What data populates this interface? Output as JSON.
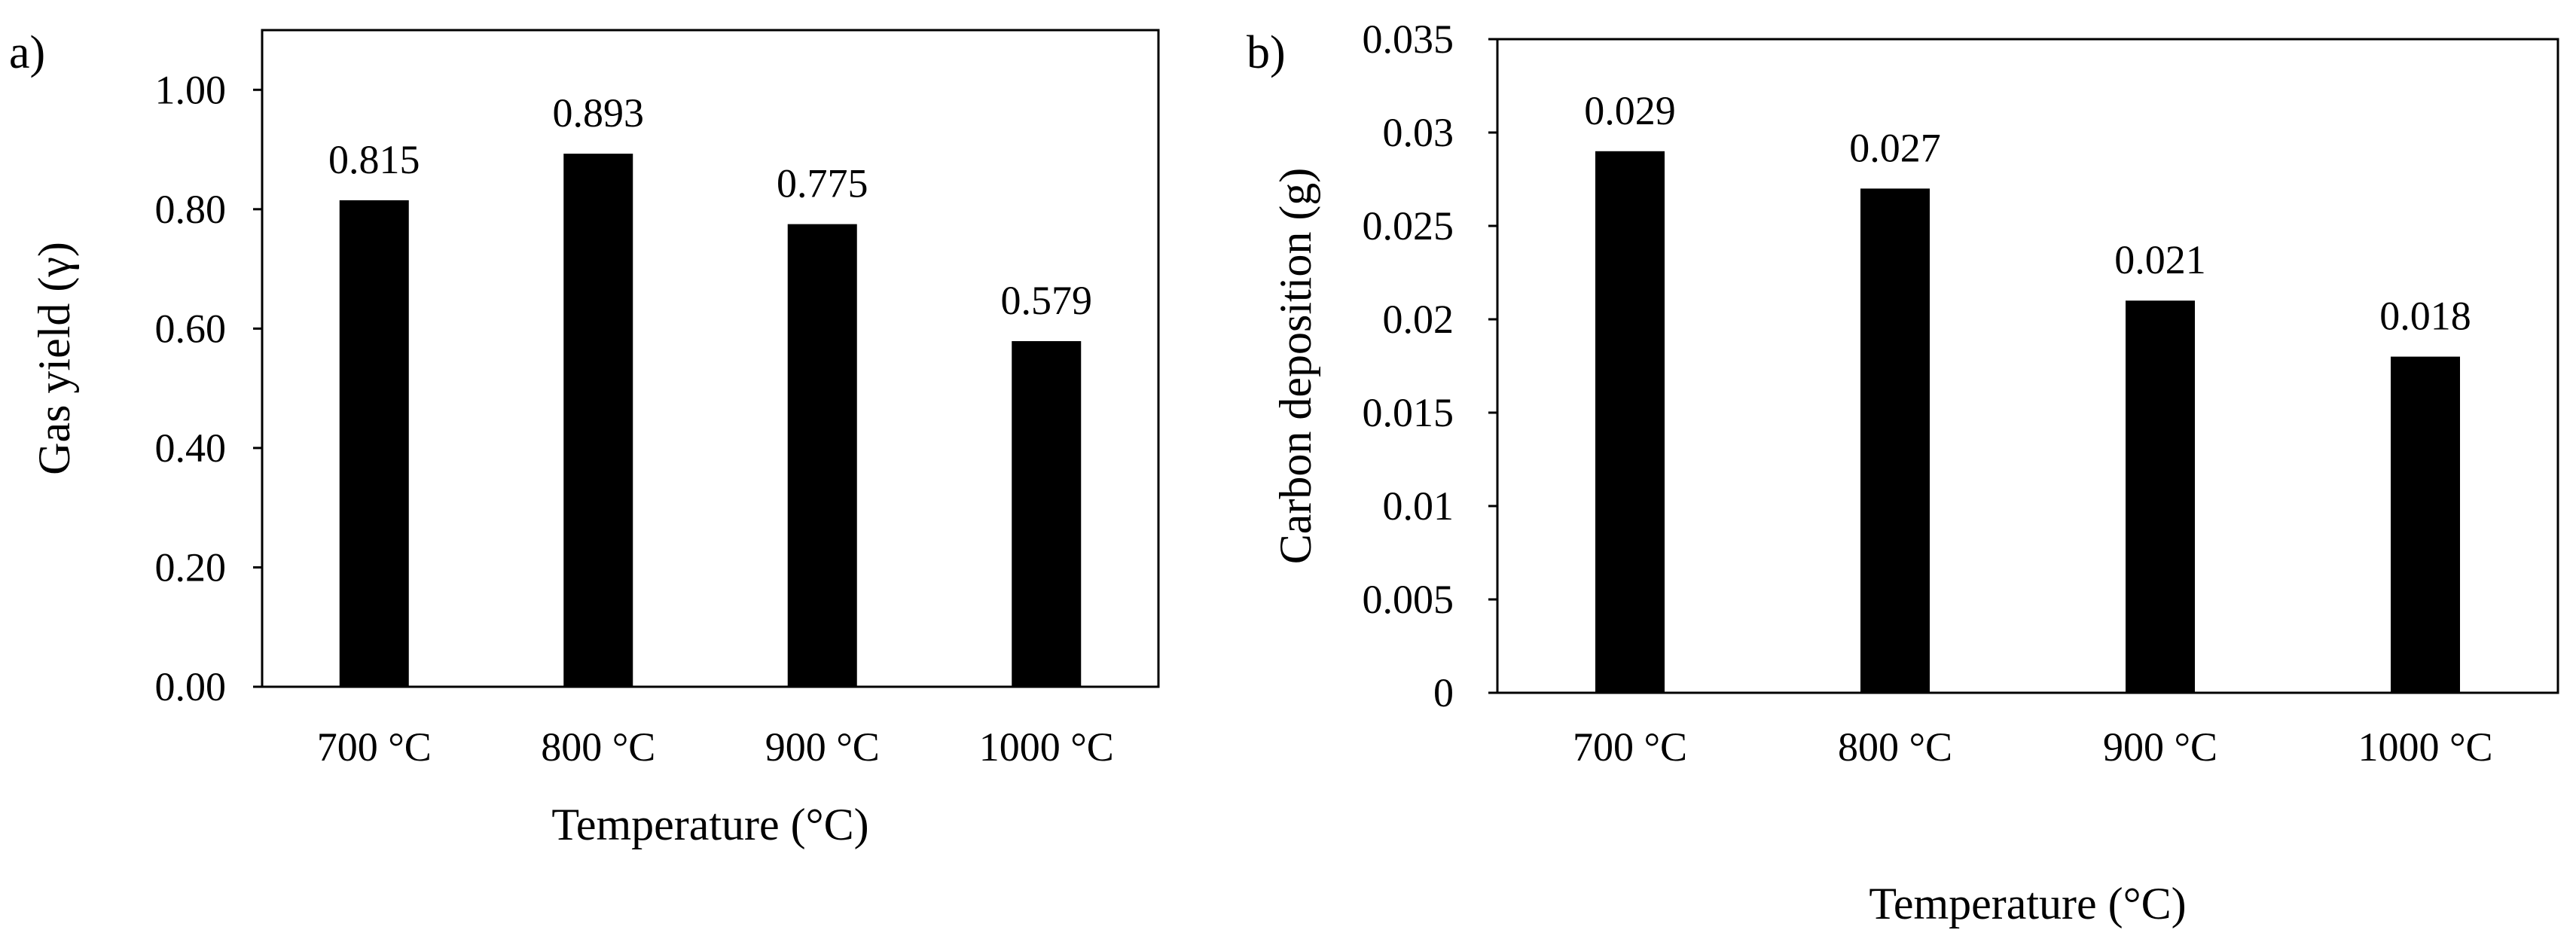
{
  "chart_data": [
    {
      "type": "bar",
      "panel_label": "a)",
      "categories": [
        "700 °C",
        "800 °C",
        "900 °C",
        "1000 °C"
      ],
      "values": [
        0.815,
        0.893,
        0.775,
        0.579
      ],
      "data_labels": [
        "0.815",
        "0.893",
        "0.775",
        "0.579"
      ],
      "xlabel": "Temperature (°C)",
      "ylabel": "Gas yield (γ)",
      "ylim": [
        0,
        1.1
      ],
      "yticks": [
        0,
        0.2,
        0.4,
        0.6,
        0.8,
        1.0
      ],
      "ytick_labels": [
        "0.00",
        "0.20",
        "0.40",
        "0.60",
        "0.80",
        "1.00"
      ],
      "grid": false,
      "bar_color": "#000000"
    },
    {
      "type": "bar",
      "panel_label": "b)",
      "categories": [
        "700 °C",
        "800 °C",
        "900 °C",
        "1000 °C"
      ],
      "values": [
        0.029,
        0.027,
        0.021,
        0.018
      ],
      "data_labels": [
        "0.029",
        "0.027",
        "0.021",
        "0.018"
      ],
      "xlabel": "Temperature (°C)",
      "ylabel": "Carbon deposition (g)",
      "ylim": [
        0,
        0.035
      ],
      "yticks": [
        0,
        0.005,
        0.01,
        0.015,
        0.02,
        0.025,
        0.03,
        0.035
      ],
      "ytick_labels": [
        "0",
        "0.005",
        "0.01",
        "0.015",
        "0.02",
        "0.025",
        "0.03",
        "0.035"
      ],
      "grid": false,
      "bar_color": "#000000"
    }
  ]
}
